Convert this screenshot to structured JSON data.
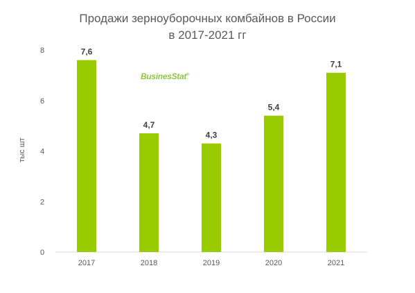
{
  "chart_data": {
    "type": "bar",
    "title": "Продажи зерноуборочных комбайнов в России",
    "subtitle": "в 2017-2021 гг",
    "xlabel": "",
    "ylabel": "тыс шт",
    "categories": [
      "2017",
      "2018",
      "2019",
      "2020",
      "2021"
    ],
    "values": [
      7.6,
      4.7,
      4.3,
      5.4,
      7.1
    ],
    "data_labels": [
      "7,6",
      "4,7",
      "4,3",
      "5,4",
      "7,1"
    ],
    "ylim": [
      0,
      8
    ],
    "yticks": [
      0,
      2,
      4,
      6,
      8
    ],
    "grid": false,
    "legend": "none",
    "bar_color": "#99cc00",
    "watermark": "BusinesStat"
  }
}
